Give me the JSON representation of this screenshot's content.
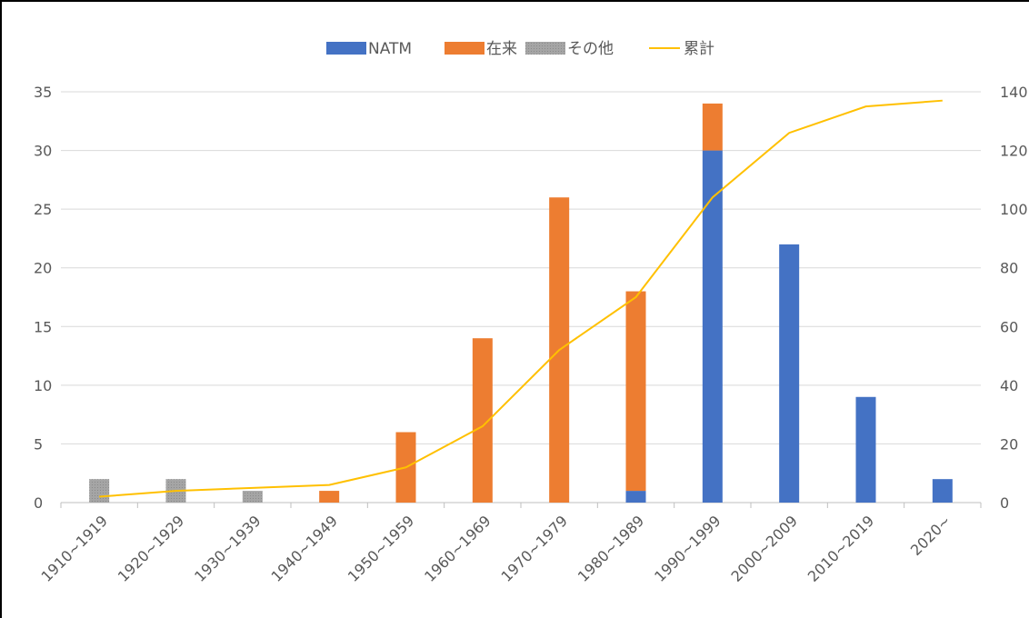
{
  "chart_data": {
    "type": "bar",
    "stacked": true,
    "categories": [
      "1910~1919",
      "1920~1929",
      "1930~1939",
      "1940~1949",
      "1950~1959",
      "1960~1969",
      "1970~1979",
      "1980~1989",
      "1990~1999",
      "2000~2009",
      "2010~2019",
      "2020~"
    ],
    "series": [
      {
        "name": "NATM",
        "type": "bar",
        "axis": "left",
        "color": "#4472C4",
        "values": [
          0,
          0,
          0,
          0,
          0,
          0,
          0,
          1,
          30,
          22,
          9,
          2
        ]
      },
      {
        "name": "在来",
        "type": "bar",
        "axis": "left",
        "color": "#ED7D31",
        "values": [
          0,
          0,
          0,
          1,
          6,
          14,
          26,
          17,
          4,
          0,
          0,
          0
        ]
      },
      {
        "name": "その他",
        "type": "bar",
        "axis": "left",
        "color": "#A5A5A5",
        "pattern": "dotted",
        "values": [
          2,
          2,
          1,
          0,
          0,
          0,
          0,
          0,
          0,
          0,
          0,
          0
        ]
      },
      {
        "name": "累計",
        "type": "line",
        "axis": "right",
        "color": "#FFC000",
        "values": [
          2,
          4,
          5,
          6,
          12,
          26,
          52,
          70,
          104,
          126,
          135,
          137
        ]
      }
    ],
    "y_left": {
      "ylim": [
        0,
        35
      ],
      "ticks": [
        0,
        5,
        10,
        15,
        20,
        25,
        30,
        35
      ]
    },
    "y_right": {
      "ylim": [
        0,
        140
      ],
      "ticks": [
        0,
        20,
        40,
        60,
        80,
        100,
        120,
        140
      ],
      "tick_labels": [
        "0",
        "20",
        "40",
        "60",
        "80",
        "100",
        "120",
        "140"
      ]
    },
    "grid": true,
    "legend": "top-center",
    "title": "",
    "xlabel": "",
    "ylabel": ""
  }
}
